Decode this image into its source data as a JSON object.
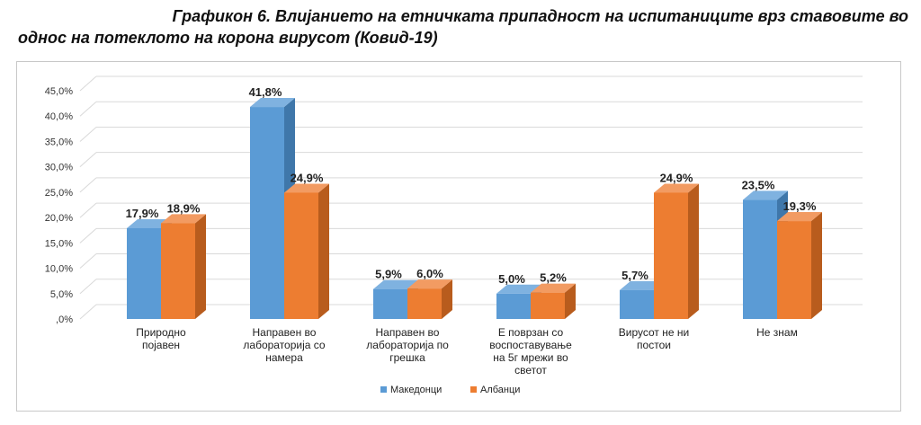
{
  "title": {
    "line1": "Графикон 6. Влијанието на етничката припадност на испитаниците врз ставовите во",
    "line2": "однос на потеклото на корона вирусот (Ковид-19)"
  },
  "chart_data": {
    "type": "bar",
    "categories": [
      [
        "Природно",
        "појавен"
      ],
      [
        "Направен во",
        "лабораторија со",
        "намера"
      ],
      [
        "Направен во",
        "лабораторија по",
        "грешка"
      ],
      [
        "Е поврзан со",
        "воспоставување",
        "на 5г мрежи во",
        "светот"
      ],
      [
        "Вирусот не ни",
        "постои"
      ],
      [
        "Не знам"
      ]
    ],
    "series": [
      {
        "name": "Македонци",
        "values": [
          17.9,
          41.8,
          5.9,
          5.0,
          5.7,
          23.5
        ],
        "labels": [
          "17,9%",
          "41,8%",
          "5,9%",
          "5,0%",
          "5,7%",
          "23,5%"
        ]
      },
      {
        "name": "Албанци",
        "values": [
          18.9,
          24.9,
          6.0,
          5.2,
          24.9,
          19.3
        ],
        "labels": [
          "18,9%",
          "24,9%",
          "6,0%",
          "5,2%",
          "24,9%",
          "19,3%"
        ]
      }
    ],
    "yticks": [
      ",0%",
      "5,0%",
      "10,0%",
      "15,0%",
      "20,0%",
      "25,0%",
      "30,0%",
      "35,0%",
      "40,0%",
      "45,0%"
    ],
    "ylim": [
      0,
      45
    ],
    "grid": true,
    "legend_position": "bottom",
    "colors": {
      "Македонци": {
        "front": "#5b9bd5",
        "top": "#7fb2e0",
        "side": "#3f77aa"
      },
      "Албанци": {
        "front": "#ed7d31",
        "top": "#f29b62",
        "side": "#b85c1d"
      },
      "grid": "#d9d9d9"
    }
  }
}
